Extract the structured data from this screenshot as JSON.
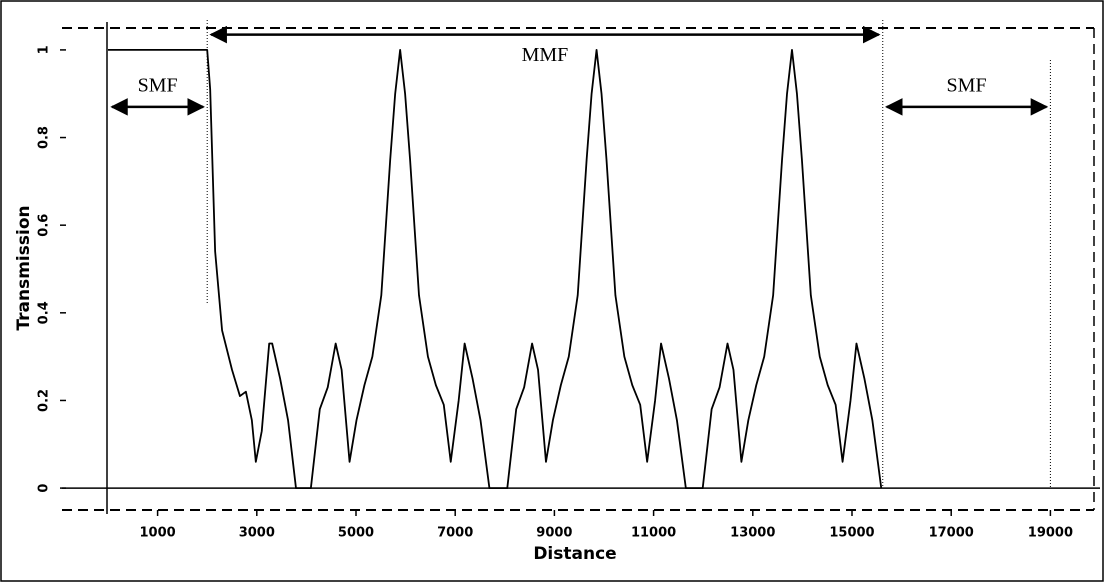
{
  "chart_data": {
    "type": "line",
    "xlabel": "Distance",
    "ylabel": "Transmission",
    "color": "#000000",
    "x": [
      0,
      2000,
      2060,
      2160,
      2300,
      2500,
      2660,
      2780,
      2900,
      2980,
      3100,
      3250,
      3310,
      3470,
      3630,
      3790,
      4090,
      4270,
      4430,
      4590,
      4710,
      4870,
      5010,
      5170,
      5330,
      5510,
      5690,
      5790,
      5890,
      5990,
      6090,
      6270,
      6450,
      6610,
      6770,
      6910,
      7070,
      7190,
      7350,
      7510,
      7690,
      8050,
      8230,
      8390,
      8550,
      8670,
      8830,
      8970,
      9130,
      9290,
      9470,
      9650,
      9750,
      9850,
      9950,
      10050,
      10230,
      10410,
      10570,
      10730,
      10870,
      11030,
      11150,
      11310,
      11470,
      11650,
      11990,
      12170,
      12330,
      12490,
      12610,
      12770,
      12910,
      13070,
      13230,
      13410,
      13590,
      13690,
      13790,
      13890,
      13990,
      14170,
      14350,
      14510,
      14670,
      14810,
      14970,
      15090,
      15250,
      15410,
      15590
    ],
    "values": [
      1,
      1,
      0.91,
      0.54,
      0.36,
      0.27,
      0.21,
      0.22,
      0.155,
      0.06,
      0.13,
      0.33,
      0.33,
      0.25,
      0.155,
      0,
      0,
      0.18,
      0.23,
      0.33,
      0.27,
      0.06,
      0.155,
      0.235,
      0.3,
      0.44,
      0.75,
      0.9,
      1.0,
      0.9,
      0.75,
      0.44,
      0.3,
      0.235,
      0.19,
      0.06,
      0.2,
      0.33,
      0.25,
      0.155,
      0,
      0,
      0.18,
      0.23,
      0.33,
      0.27,
      0.06,
      0.155,
      0.235,
      0.3,
      0.44,
      0.75,
      0.9,
      1.0,
      0.9,
      0.75,
      0.44,
      0.3,
      0.235,
      0.19,
      0.06,
      0.2,
      0.33,
      0.25,
      0.155,
      0,
      0,
      0.18,
      0.23,
      0.33,
      0.27,
      0.06,
      0.155,
      0.235,
      0.3,
      0.44,
      0.75,
      0.9,
      1.0,
      0.9,
      0.75,
      0.44,
      0.3,
      0.235,
      0.19,
      0.06,
      0.2,
      0.33,
      0.25,
      0.155,
      0
    ],
    "xlim": [
      0,
      20000
    ],
    "xticks": [
      1000,
      3000,
      5000,
      7000,
      9000,
      11000,
      13000,
      15000,
      17000,
      19000
    ],
    "ylim": [
      -0.05,
      1.05
    ],
    "yticks": [
      0,
      0.2,
      0.4,
      0.6,
      0.8,
      1
    ],
    "annotations": [
      {
        "text": "SMF",
        "x": [
          0,
          2000
        ],
        "y": 0.87
      },
      {
        "text": "MMF",
        "x": [
          2000,
          15620
        ],
        "y": 1.035
      },
      {
        "text": "SMF",
        "x": [
          15620,
          19000
        ],
        "y": 0.87
      }
    ]
  }
}
